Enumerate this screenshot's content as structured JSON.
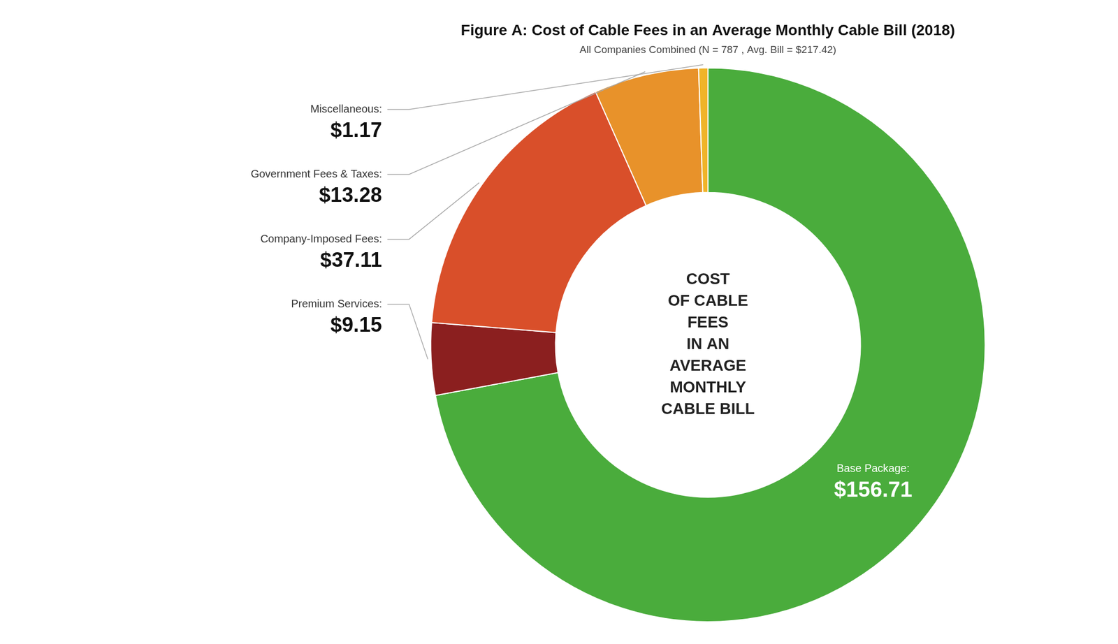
{
  "chart_data": {
    "type": "doughnut",
    "title": "Figure A: Cost of Cable Fees in an Average Monthly Cable Bill (2018)",
    "subtitle": "All Companies Combined (N = 787 , Avg. Bill = $217.42)",
    "categories": [
      "Base Package:",
      "Premium Services:",
      "Company-Imposed Fees:",
      "Government Fees & Taxes:",
      "Miscellaneous:"
    ],
    "values": [
      156.71,
      9.15,
      37.11,
      13.28,
      1.17
    ],
    "value_labels": [
      "$156.71",
      "$9.15",
      "$37.11",
      "$13.28",
      "$1.17"
    ],
    "data_labels": true,
    "colors": [
      "#4aac3c",
      "#8b1f1f",
      "#d94f2a",
      "#e8922a",
      "#f0b429"
    ],
    "annotations": [
      "COST",
      "OF CABLE",
      "FEES",
      "IN AN",
      "AVERAGE",
      "MONTHLY",
      "CABLE BILL"
    ]
  }
}
